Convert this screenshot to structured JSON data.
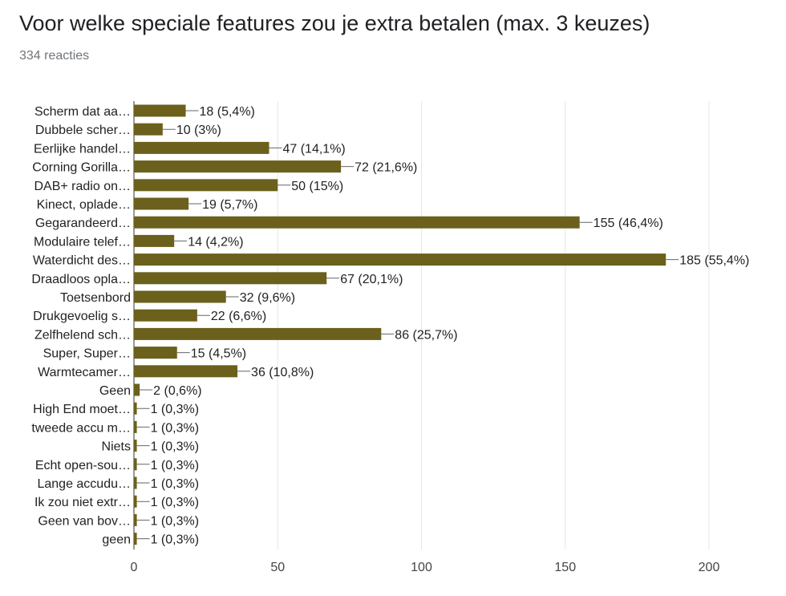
{
  "header": {
    "title": "Voor welke speciale features zou je extra betalen (max. 3 keuzes)",
    "responses": "334 reacties"
  },
  "chart_data": {
    "type": "bar",
    "orientation": "horizontal",
    "title": "Voor welke speciale features zou je extra betalen (max. 3 keuzes)",
    "subtitle": "334 reacties",
    "xlim": [
      0,
      200
    ],
    "x_ticks": [
      "0",
      "50",
      "100",
      "150",
      "200"
    ],
    "grid": true,
    "bar_color": "#6b601c",
    "categories": [
      "Scherm dat aa…",
      "Dubbele scher…",
      "Eerlijke handel…",
      "Corning Gorilla…",
      "DAB+ radio on…",
      "Kinect, oplade…",
      "Gegarandeerd…",
      "Modulaire telef…",
      "Waterdicht des…",
      "Draadloos opla…",
      "Toetsenbord",
      "Drukgevoelig s…",
      "Zelfhelend sch…",
      "Super, Super…",
      "Warmtecamer…",
      "Geen",
      "High End moet…",
      "tweede accu m…",
      "Niets",
      "Echt open-sou…",
      "Lange accudu…",
      "Ik zou niet extr…",
      "Geen van bov…",
      "geen"
    ],
    "values": [
      18,
      10,
      47,
      72,
      50,
      19,
      155,
      14,
      185,
      67,
      32,
      22,
      86,
      15,
      36,
      2,
      1,
      1,
      1,
      1,
      1,
      1,
      1,
      1
    ],
    "data_labels": [
      "18 (5,4%)",
      "10 (3%)",
      "47 (14,1%)",
      "72 (21,6%)",
      "50 (15%)",
      "19 (5,7%)",
      "155 (46,4%)",
      "14 (4,2%)",
      "185 (55,4%)",
      "67 (20,1%)",
      "32 (9,6%)",
      "22 (6,6%)",
      "86 (25,7%)",
      "15 (4,5%)",
      "36 (10,8%)",
      "2 (0,6%)",
      "1 (0,3%)",
      "1 (0,3%)",
      "1 (0,3%)",
      "1 (0,3%)",
      "1 (0,3%)",
      "1 (0,3%)",
      "1 (0,3%)",
      "1 (0,3%)"
    ]
  }
}
